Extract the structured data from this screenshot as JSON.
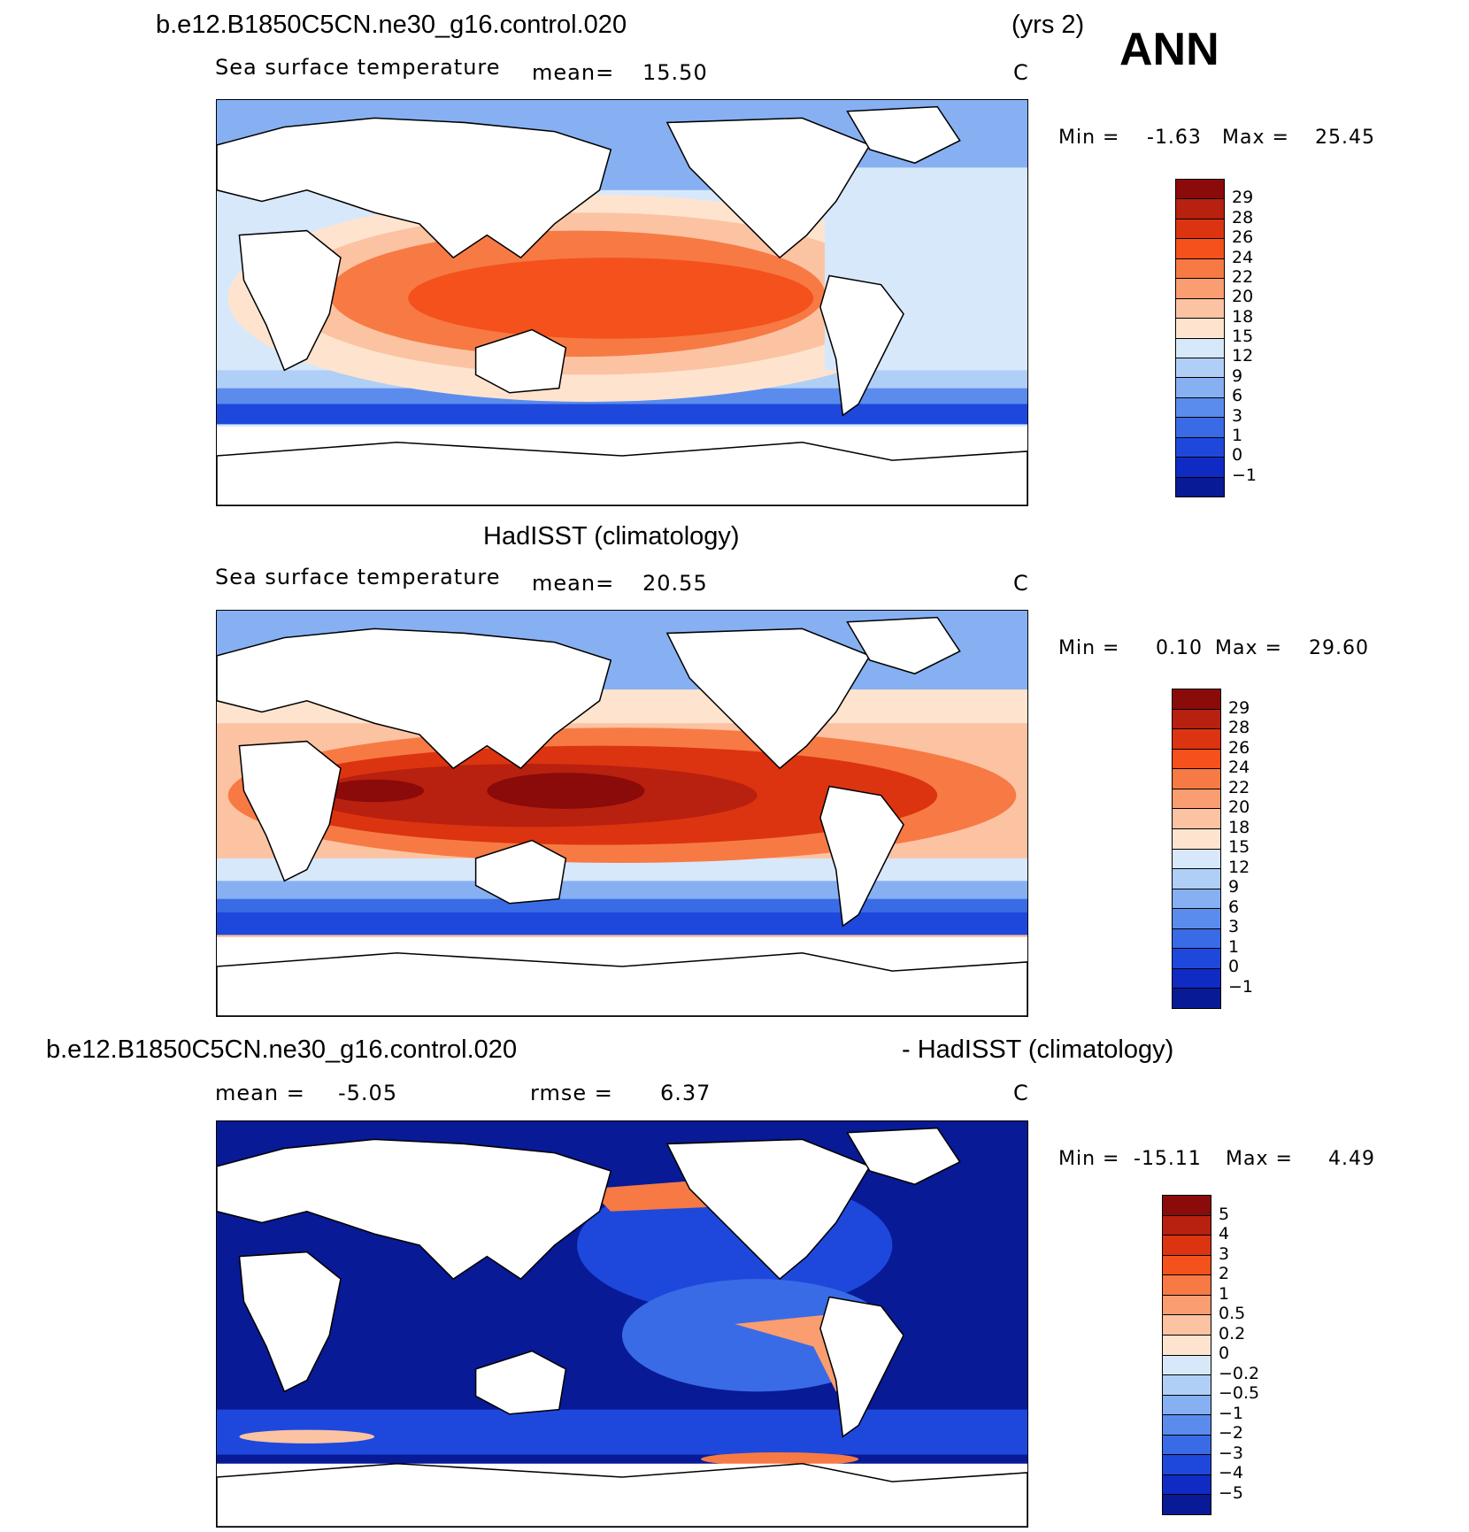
{
  "header": {
    "case_title": "b.e12.B1850C5CN.ne30_g16.control.020",
    "years": "(yrs 2)",
    "season": "ANN"
  },
  "panels": [
    {
      "title": "",
      "variable": "Sea surface temperature",
      "stat1_label": "mean=",
      "stat1_value": "15.50",
      "units": "C",
      "min_label": "Min =",
      "min_value": "-1.63",
      "max_label": "Max =",
      "max_value": "25.45",
      "colorbar_labels": [
        "29",
        "28",
        "26",
        "24",
        "22",
        "20",
        "18",
        "15",
        "12",
        "9",
        "6",
        "3",
        "1",
        "0",
        "-1"
      ],
      "colorbar_colors": [
        "#8b0a0a",
        "#b8200f",
        "#dc3410",
        "#f4511c",
        "#f77a44",
        "#fa9d70",
        "#fcc3a3",
        "#fee4ce",
        "#d7e8fb",
        "#b0cff7",
        "#86b0f2",
        "#5b8ced",
        "#3a6be6",
        "#1e48dc",
        "#0f2bc4",
        "#081a96"
      ]
    },
    {
      "title": "HadISST (climatology)",
      "variable": "Sea surface temperature",
      "stat1_label": "mean=",
      "stat1_value": "20.55",
      "units": "C",
      "min_label": "Min =",
      "min_value": "0.10",
      "max_label": "Max =",
      "max_value": "29.60",
      "colorbar_labels": [
        "29",
        "28",
        "26",
        "24",
        "22",
        "20",
        "18",
        "15",
        "12",
        "9",
        "6",
        "3",
        "1",
        "0",
        "-1"
      ],
      "colorbar_colors": [
        "#8b0a0a",
        "#b8200f",
        "#dc3410",
        "#f4511c",
        "#f77a44",
        "#fa9d70",
        "#fcc3a3",
        "#fee4ce",
        "#d7e8fb",
        "#b0cff7",
        "#86b0f2",
        "#5b8ced",
        "#3a6be6",
        "#1e48dc",
        "#0f2bc4",
        "#081a96"
      ]
    },
    {
      "title_left": "b.e12.B1850C5CN.ne30_g16.control.020",
      "title_right": "- HadISST (climatology)",
      "stat1_label": "mean =",
      "stat1_value": "-5.05",
      "stat2_label": "rmse =",
      "stat2_value": "6.37",
      "units": "C",
      "min_label": "Min =",
      "min_value": "-15.11",
      "max_label": "Max =",
      "max_value": "4.49",
      "colorbar_labels": [
        "5",
        "4",
        "3",
        "2",
        "1",
        "0.5",
        "0.2",
        "0",
        "-0.2",
        "-0.5",
        "-1",
        "-2",
        "-3",
        "-4",
        "-5"
      ],
      "colorbar_colors": [
        "#8b0a0a",
        "#b8200f",
        "#dc3410",
        "#f4511c",
        "#f77a44",
        "#fa9d70",
        "#fcc3a3",
        "#fee4ce",
        "#d7e8fb",
        "#b0cff7",
        "#86b0f2",
        "#5b8ced",
        "#3a6be6",
        "#1e48dc",
        "#0f2bc4",
        "#081a96"
      ]
    }
  ]
}
